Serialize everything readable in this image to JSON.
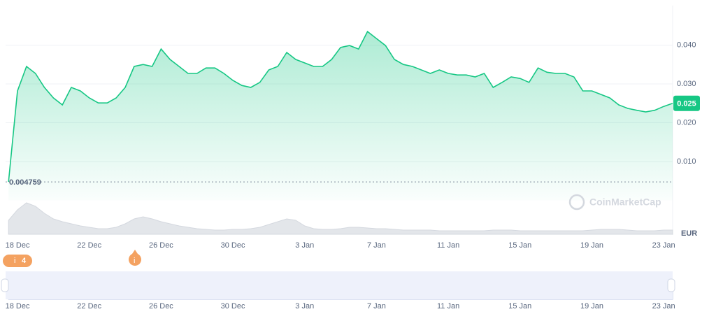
{
  "chart_data": {
    "type": "line",
    "categories": [
      null,
      "18 Dec",
      null,
      null,
      null,
      null,
      null,
      null,
      null,
      "22 Dec",
      null,
      null,
      null,
      null,
      null,
      null,
      null,
      "26 Dec",
      null,
      null,
      null,
      null,
      null,
      null,
      null,
      "30 Dec",
      null,
      null,
      null,
      null,
      null,
      null,
      null,
      "3 Jan",
      null,
      null,
      null,
      null,
      null,
      null,
      null,
      "7 Jan",
      null,
      null,
      null,
      null,
      null,
      null,
      null,
      "11 Jan",
      null,
      null,
      null,
      null,
      null,
      null,
      null,
      "15 Jan",
      null,
      null,
      null,
      null,
      null,
      null,
      null,
      "19 Jan",
      null,
      null,
      null,
      null,
      null,
      null,
      null,
      "23 Jan",
      null
    ],
    "values": [
      0.004759,
      0.0282,
      0.0345,
      0.0327,
      0.0291,
      0.0264,
      0.0246,
      0.0291,
      0.0282,
      0.0264,
      0.0251,
      0.0251,
      0.0264,
      0.0291,
      0.0345,
      0.035,
      0.0345,
      0.039,
      0.0363,
      0.0345,
      0.0327,
      0.0327,
      0.0341,
      0.0341,
      0.0327,
      0.0309,
      0.0296,
      0.0291,
      0.0304,
      0.0336,
      0.0345,
      0.0381,
      0.0363,
      0.0354,
      0.0345,
      0.0345,
      0.0363,
      0.0394,
      0.0399,
      0.039,
      0.0435,
      0.0417,
      0.0399,
      0.0363,
      0.035,
      0.0345,
      0.0336,
      0.0327,
      0.0336,
      0.0327,
      0.0323,
      0.0323,
      0.0318,
      0.0327,
      0.0291,
      0.0304,
      0.0318,
      0.0314,
      0.0304,
      0.0341,
      0.033,
      0.0327,
      0.0327,
      0.0318,
      0.0282,
      0.0282,
      0.0273,
      0.0264,
      0.0246,
      0.0237,
      0.0232,
      0.0228,
      0.0232,
      0.0242,
      0.025
    ],
    "color": "#16c784",
    "volume": [
      20,
      35,
      45,
      40,
      30,
      22,
      18,
      15,
      12,
      10,
      8,
      8,
      10,
      15,
      22,
      25,
      22,
      18,
      15,
      12,
      10,
      8,
      7,
      6,
      6,
      7,
      7,
      8,
      10,
      14,
      18,
      22,
      20,
      12,
      8,
      7,
      7,
      8,
      10,
      10,
      9,
      8,
      8,
      7,
      6,
      6,
      6,
      6,
      5,
      5,
      5,
      5,
      5,
      5,
      6,
      6,
      6,
      5,
      5,
      5,
      5,
      5,
      5,
      5,
      5,
      6,
      7,
      7,
      7,
      6,
      5,
      5,
      5,
      6,
      6
    ],
    "ylim": [
      0,
      0.05
    ],
    "yticks": [
      {
        "value": 0.01,
        "label": "0.010"
      },
      {
        "value": 0.02,
        "label": "0.020"
      },
      {
        "value": 0.03,
        "label": "0.030"
      },
      {
        "value": 0.04,
        "label": "0.040"
      }
    ],
    "grid": true,
    "low_label": 0.004759,
    "current_price": 0.025,
    "currency": "EUR",
    "watermark": "CoinMarketCap",
    "event_count": 4
  }
}
